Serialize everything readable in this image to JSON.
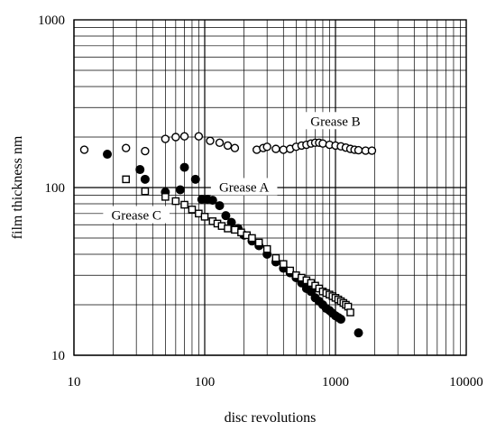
{
  "chart_data": {
    "type": "scatter",
    "title": "",
    "xlabel": "disc revolutions",
    "ylabel": "film thickness nm",
    "x_scale": "log",
    "y_scale": "log",
    "xlim": [
      10,
      10000
    ],
    "ylim": [
      10,
      1000
    ],
    "x_ticks": [
      {
        "value": 10,
        "label": "10"
      },
      {
        "value": 100,
        "label": "100"
      },
      {
        "value": 1000,
        "label": "1000"
      },
      {
        "value": 10000,
        "label": "10000"
      }
    ],
    "y_ticks": [
      {
        "value": 10,
        "label": "10"
      },
      {
        "value": 100,
        "label": "100"
      },
      {
        "value": 1000,
        "label": "1000"
      }
    ],
    "grid": true,
    "series": [
      {
        "name": "Grease B",
        "marker": "open-circle",
        "color": "#000000",
        "points": [
          [
            12,
            168
          ],
          [
            25,
            172
          ],
          [
            35,
            165
          ],
          [
            50,
            195
          ],
          [
            60,
            200
          ],
          [
            70,
            202
          ],
          [
            90,
            202
          ],
          [
            110,
            190
          ],
          [
            130,
            185
          ],
          [
            150,
            178
          ],
          [
            170,
            172
          ],
          [
            250,
            168
          ],
          [
            280,
            172
          ],
          [
            300,
            175
          ],
          [
            350,
            170
          ],
          [
            400,
            168
          ],
          [
            450,
            170
          ],
          [
            500,
            175
          ],
          [
            550,
            178
          ],
          [
            600,
            180
          ],
          [
            650,
            183
          ],
          [
            700,
            185
          ],
          [
            750,
            185
          ],
          [
            800,
            183
          ],
          [
            900,
            180
          ],
          [
            1000,
            178
          ],
          [
            1100,
            176
          ],
          [
            1200,
            173
          ],
          [
            1300,
            170
          ],
          [
            1400,
            168
          ],
          [
            1500,
            167
          ],
          [
            1700,
            166
          ],
          [
            1900,
            166
          ]
        ]
      },
      {
        "name": "Grease A",
        "marker": "filled-circle",
        "color": "#000000",
        "points": [
          [
            18,
            158
          ],
          [
            32,
            128
          ],
          [
            35,
            112
          ],
          [
            50,
            94
          ],
          [
            65,
            97
          ],
          [
            70,
            132
          ],
          [
            85,
            112
          ],
          [
            95,
            85
          ],
          [
            105,
            85
          ],
          [
            115,
            84
          ],
          [
            130,
            78
          ],
          [
            145,
            68
          ],
          [
            160,
            62
          ],
          [
            180,
            57
          ],
          [
            200,
            52
          ],
          [
            230,
            48
          ],
          [
            260,
            45
          ],
          [
            300,
            40
          ],
          [
            350,
            36
          ],
          [
            400,
            33
          ],
          [
            450,
            31
          ],
          [
            500,
            29
          ],
          [
            550,
            27
          ],
          [
            600,
            25
          ],
          [
            650,
            24
          ],
          [
            700,
            22
          ],
          [
            750,
            21
          ],
          [
            800,
            20
          ],
          [
            850,
            19
          ],
          [
            900,
            18.5
          ],
          [
            950,
            17.8
          ],
          [
            1000,
            17.2
          ],
          [
            1050,
            16.8
          ],
          [
            1100,
            16.4
          ],
          [
            1500,
            13.6
          ]
        ]
      },
      {
        "name": "Grease C",
        "marker": "open-square",
        "color": "#000000",
        "points": [
          [
            25,
            112
          ],
          [
            35,
            95
          ],
          [
            50,
            88
          ],
          [
            60,
            83
          ],
          [
            70,
            79
          ],
          [
            80,
            74
          ],
          [
            90,
            70
          ],
          [
            100,
            67
          ],
          [
            115,
            63
          ],
          [
            125,
            61
          ],
          [
            135,
            59
          ],
          [
            150,
            57
          ],
          [
            170,
            56
          ],
          [
            190,
            54
          ],
          [
            210,
            52
          ],
          [
            230,
            50
          ],
          [
            260,
            47
          ],
          [
            300,
            43
          ],
          [
            350,
            38
          ],
          [
            400,
            35
          ],
          [
            450,
            32
          ],
          [
            500,
            30
          ],
          [
            550,
            29
          ],
          [
            600,
            28
          ],
          [
            650,
            27
          ],
          [
            700,
            26
          ],
          [
            750,
            25
          ],
          [
            800,
            24
          ],
          [
            850,
            23.5
          ],
          [
            900,
            23
          ],
          [
            950,
            22.5
          ],
          [
            1000,
            22
          ],
          [
            1050,
            21.5
          ],
          [
            1100,
            21
          ],
          [
            1150,
            20.5
          ],
          [
            1200,
            20
          ],
          [
            1250,
            19.5
          ],
          [
            1300,
            18
          ]
        ]
      }
    ],
    "annotations": [
      {
        "text": "Grease B",
        "x": 1000,
        "y": 240
      },
      {
        "text": "Grease A",
        "x": 200,
        "y": 97
      },
      {
        "text": "Grease C",
        "x": 30,
        "y": 66
      }
    ]
  }
}
